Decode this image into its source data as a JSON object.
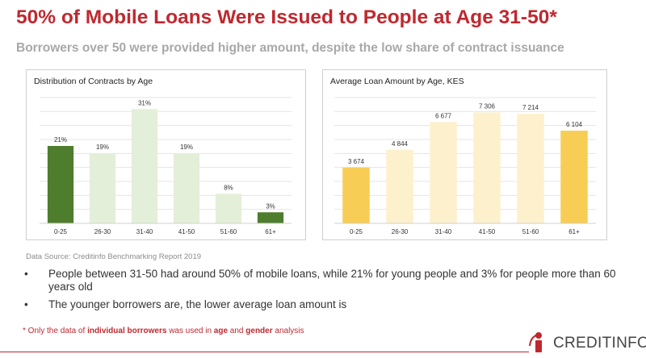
{
  "title": "50% of Mobile Loans Were Issued to People at Age 31-50*",
  "subtitle": "Borrowers over 50 were provided higher amount, despite the low share of contract issuance",
  "chart_data": [
    {
      "type": "bar",
      "title": "Distribution of Contracts by Age",
      "categories": [
        "0-25",
        "26-30",
        "31-40",
        "41-50",
        "51-60",
        "61+"
      ],
      "values": [
        21,
        19,
        31,
        19,
        8,
        3
      ],
      "labels": [
        "21%",
        "19%",
        "31%",
        "19%",
        "8%",
        "3%"
      ],
      "ylim": [
        0,
        35
      ],
      "grid": true,
      "colors": [
        "#4e7d2d",
        "#e3efd8",
        "#e3efd8",
        "#e3efd8",
        "#e3efd8",
        "#4e7d2d"
      ]
    },
    {
      "type": "bar",
      "title": "Average Loan Amount by Age, KES",
      "categories": [
        "0-25",
        "26-30",
        "31-40",
        "41-50",
        "51-60",
        "61+"
      ],
      "values": [
        3674,
        4844,
        6677,
        7306,
        7214,
        6104
      ],
      "labels": [
        "3 674",
        "4 844",
        "6 677",
        "7 306",
        "7 214",
        "6 104"
      ],
      "ylim": [
        0,
        8500
      ],
      "grid": true,
      "colors": [
        "#f7cd55",
        "#fdf0cc",
        "#fdf0cc",
        "#fdf0cc",
        "#fdf0cc",
        "#f7cd55"
      ]
    }
  ],
  "source": "Data Source: Creditinfo Benchmarking Report 2019",
  "bullets": [
    {
      "marker": "•",
      "text": "People between 31-50 had around 50% of mobile loans, while 21% for young people and 3% for people more than 60 years old"
    },
    {
      "marker": "•",
      "text": "The younger borrowers are, the lower average loan amount is"
    }
  ],
  "note": {
    "p1": "* Only the data of ",
    "b1": "individual borrowers",
    "p2": " was used in ",
    "b2": "age",
    "p3": " and ",
    "b3": "gender",
    "p4": " analysis"
  },
  "logo": {
    "text": "CREDITINFO",
    "icon": "creditinfo-i-logo",
    "accent": "#c0282f"
  }
}
